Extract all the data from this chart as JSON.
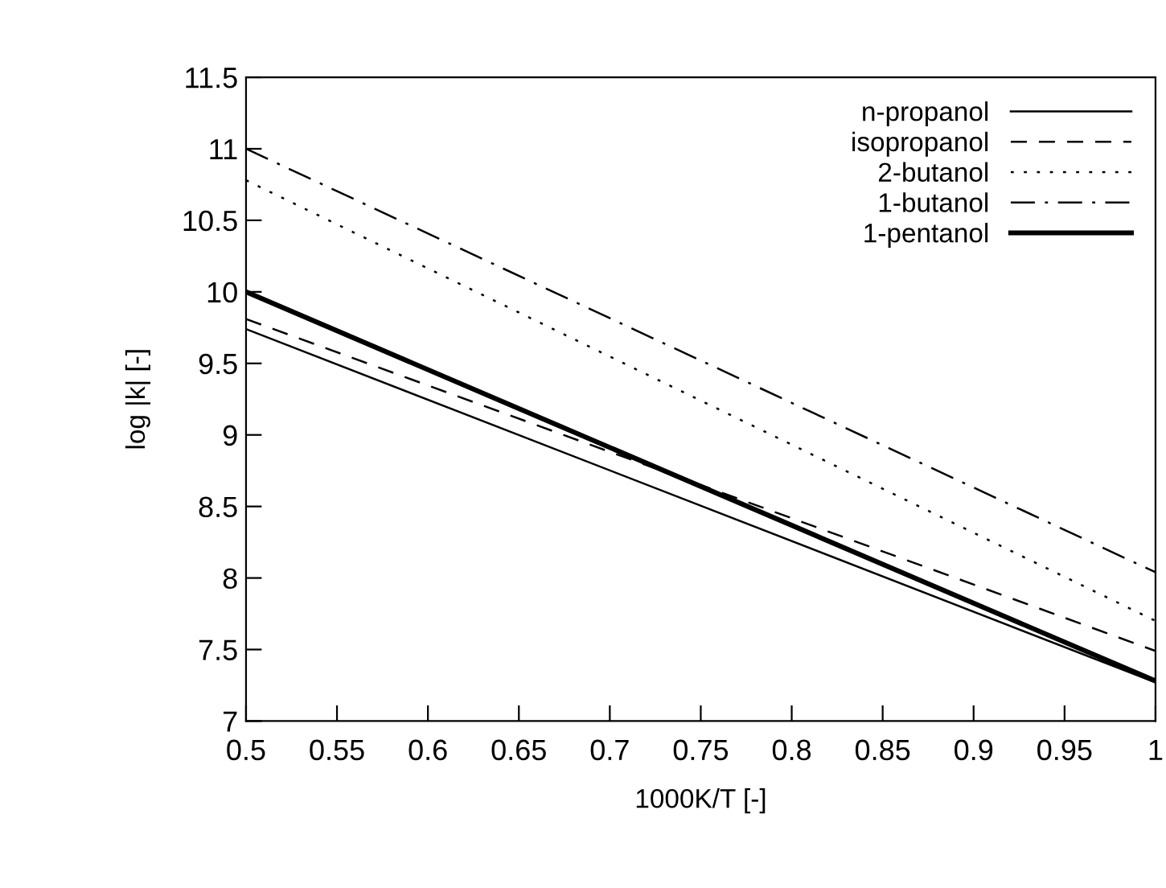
{
  "chart_data": {
    "type": "line",
    "xlabel": "1000K/T [-]",
    "ylabel": "log |k| [-]",
    "x": [
      0.5,
      1
    ],
    "series": [
      {
        "name": "n-propanol",
        "color": "#000000",
        "values": [
          9.74,
          7.27
        ],
        "line_style": "solid"
      },
      {
        "name": "isopropanol",
        "color": "#000000",
        "values": [
          9.81,
          7.49
        ],
        "line_style": "dashed"
      },
      {
        "name": "2-butanol",
        "color": "#000000",
        "values": [
          10.78,
          7.7
        ],
        "line_style": "dotted"
      },
      {
        "name": "1-butanol",
        "color": "#000000",
        "values": [
          11.0,
          8.04
        ],
        "line_style": "dashdot"
      },
      {
        "name": "1-pentanol",
        "color": "#000000",
        "values": [
          10.0,
          7.28
        ],
        "line_style": "solid"
      }
    ],
    "xlim": [
      0.5,
      1
    ],
    "xticks": [
      0.5,
      0.55,
      0.6,
      0.65,
      0.7,
      0.75,
      0.8,
      0.85,
      0.9,
      0.95,
      1
    ],
    "ylim": [
      7,
      11.5
    ],
    "yticks": [
      7,
      7.5,
      8,
      8.5,
      9,
      9.5,
      10,
      10.5,
      11,
      11.5
    ],
    "grid": false,
    "legend": "top right",
    "marker": "none"
  }
}
